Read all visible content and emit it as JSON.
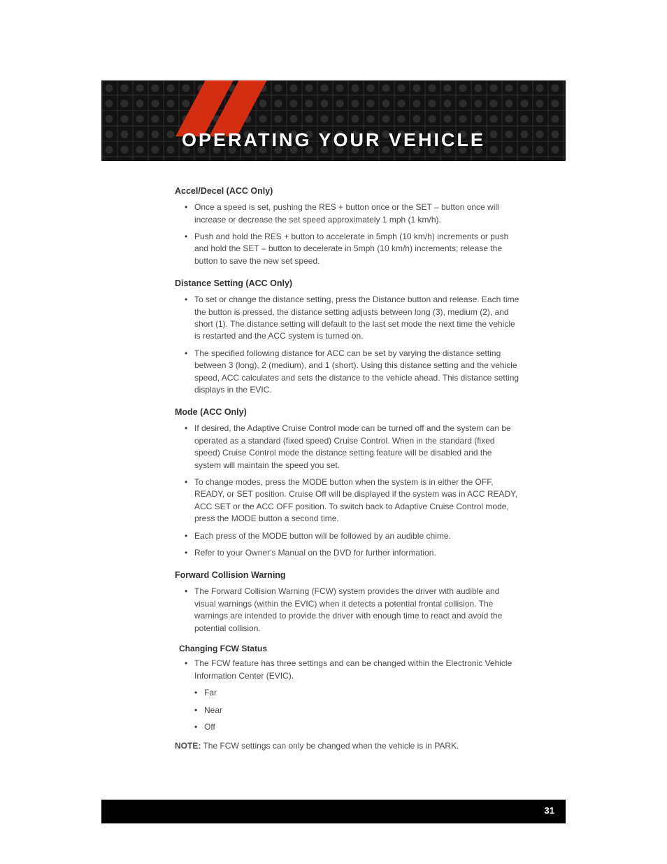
{
  "header": {
    "title": "OPERATING YOUR VEHICLE",
    "accent_color": "#d42e12",
    "band_bg": "#1a1a1a",
    "title_fontsize": 27,
    "title_color": "#ffffff"
  },
  "sections": {
    "accel": {
      "title": "Accel/Decel (ACC Only)",
      "items": [
        "Once a speed is set, pushing the RES + button once or the SET – button once will increase or decrease the set speed approximately 1 mph (1 km/h).",
        "Push and hold the RES + button to accelerate in 5mph (10 km/h) increments or push and hold the SET – button to decelerate in 5mph (10 km/h) increments; release the button to save the new set speed."
      ]
    },
    "distance": {
      "title": "Distance Setting (ACC Only)",
      "items": [
        "To set or change the distance setting, press the Distance button and release. Each time the button is pressed, the distance setting adjusts between long (3), medium (2), and short (1). The distance setting will default to the last set mode the next time the vehicle is restarted and the ACC system is turned on.",
        "The specified following distance for ACC can be set by varying the distance setting between 3 (long), 2 (medium), and 1 (short). Using this distance setting and the vehicle speed, ACC calculates and sets the distance to the vehicle ahead. This distance setting displays in the EVIC."
      ]
    },
    "mode": {
      "title": "Mode (ACC Only)",
      "items": [
        "If desired, the Adaptive Cruise Control mode can be turned off and the system can be operated as a standard (fixed speed) Cruise Control. When in the standard (fixed speed) Cruise Control mode the distance setting feature will be disabled and the system will maintain the speed you set.",
        "To change modes, press the MODE button when the system is in either the OFF, READY, or SET position. Cruise Off will be displayed if the system was in ACC READY, ACC SET or the ACC OFF position. To switch back to Adaptive Cruise Control mode, press the MODE button a second time.",
        "Each press of the MODE button will be followed by an audible chime.",
        "Refer to your Owner's Manual on the DVD for further information."
      ]
    },
    "fcw": {
      "title": "Forward Collision Warning",
      "items": [
        "The Forward Collision Warning (FCW) system provides the driver with audible and visual warnings (within the EVIC) when it detects a potential frontal collision. The warnings are intended to provide the driver with enough time to react and avoid the potential collision."
      ]
    },
    "fcw_status": {
      "title": "Changing FCW Status",
      "items": [
        "The FCW feature has three settings and can be changed within the Electronic Vehicle Information Center (EVIC)."
      ],
      "options": [
        "Far",
        "Near",
        "Off"
      ]
    }
  },
  "note": {
    "label": "NOTE:",
    "text": "The FCW settings can only be changed when the vehicle is in PARK."
  },
  "footer": {
    "page_number": "31",
    "bg": "#000000",
    "color": "#ffffff"
  },
  "typography": {
    "body_fontsize": 12,
    "body_color": "#4a4a4a",
    "heading_color": "#333333"
  }
}
